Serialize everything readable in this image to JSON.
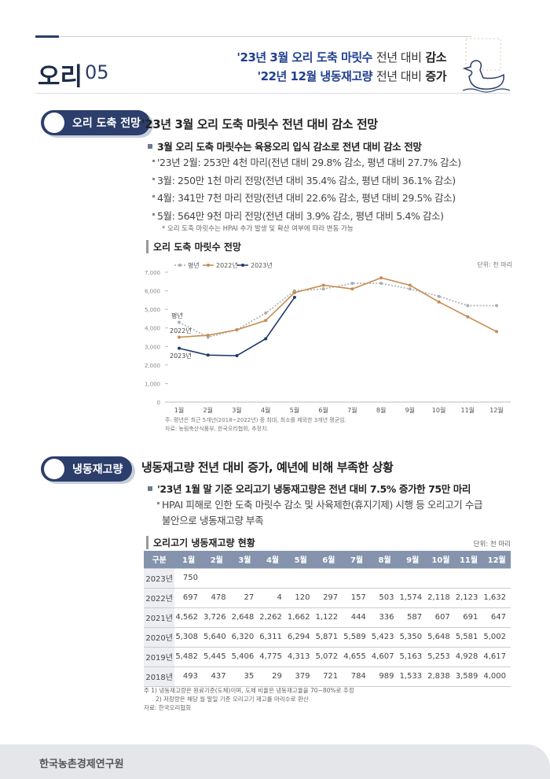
{
  "header": {
    "title": "오리",
    "number": "05",
    "headline_1": {
      "a": "'23년 3월 오리 도축 마릿수",
      "b": "전년 대비",
      "c": "감소"
    },
    "headline_2": {
      "a": "'22년 12월 냉동재고량",
      "b": "전년 대비",
      "c": "증가"
    }
  },
  "section_1": {
    "tag": "오리 도축 전망",
    "heading": "'23년 3월 오리 도축 마릿수 전년 대비 감소 전망",
    "bullet": "3월 오리 도축 마릿수는 육용오리 입식 감소로 전년 대비 감소 전망",
    "items": [
      "'23년 2월: 253만 4천 마리(전년 대비 29.8% 감소, 평년 대비 27.7% 감소)",
      "3월: 250만 1천 마리 전망(전년 대비 35.4% 감소, 평년 대비 36.1% 감소)",
      "4월: 341만 7천 마리 전망(전년 대비 22.6% 감소, 평년 대비 29.5% 감소)",
      "5월: 564만 9천 마리 전망(전년 대비 3.9% 감소, 평년 대비 5.4% 감소)"
    ],
    "note": "* 오리 도축 마릿수는 HPAI 추가 발생 및 확산 여부에 따라 변동 가능"
  },
  "chart_data": {
    "type": "line",
    "title": "오리 도축 마릿수 전망",
    "unit": "단위: 천 마리",
    "categories": [
      "1월",
      "2월",
      "3월",
      "4월",
      "5월",
      "6월",
      "7월",
      "8월",
      "9월",
      "10월",
      "11월",
      "12월"
    ],
    "series": [
      {
        "name": "평년",
        "color": "#a9aeb6",
        "dash": true,
        "values": [
          4300,
          3500,
          3900,
          4800,
          6000,
          6100,
          6400,
          6400,
          6100,
          5700,
          5200,
          5200
        ]
      },
      {
        "name": "2022년",
        "color": "#c98b4f",
        "dash": false,
        "values": [
          3500,
          3600,
          3900,
          4400,
          5900,
          6300,
          6100,
          6700,
          6300,
          5400,
          4600,
          3800
        ]
      },
      {
        "name": "2023년",
        "color": "#1f3a6b",
        "dash": false,
        "values": [
          2900,
          2534,
          2501,
          3417,
          5649,
          null,
          null,
          null,
          null,
          null,
          null,
          null
        ]
      }
    ],
    "annotations": [
      "평년",
      "2022년",
      "2023년"
    ],
    "ylim": [
      0,
      7000
    ],
    "yticks": [
      0,
      {
        "value": 1000,
        "label": "1,000"
      },
      {
        "value": 2000,
        "label": "2,000"
      },
      {
        "value": 3000,
        "label": "3,000"
      },
      {
        "value": 4000,
        "label": "4,000"
      },
      {
        "value": 5000,
        "label": "5,000"
      },
      {
        "value": 6000,
        "label": "6,000"
      },
      {
        "value": 7000,
        "label": "7,000"
      }
    ],
    "notes": [
      "주: 평년은 최근 5개년(2018~2022년) 중 최대, 최소를 제외한 3개년 평균임.",
      "자료: 농림축산식품부, 한국오리협회, 추정치."
    ]
  },
  "section_2": {
    "tag": "냉동재고량",
    "heading": "냉동재고량 전년 대비 증가, 예년에 비해 부족한 상황",
    "bullet": "'23년 1월 말 기준 오리고기 냉동재고량은 전년 대비 7.5% 증가한 75만 마리",
    "items": [
      "HPAI 피해로 인한 도축 마릿수 감소 및 사육제한(휴지기제) 시행 등 오리고기 수급",
      "불안으로 냉동재고량 부족"
    ]
  },
  "table": {
    "title": "오리고기 냉동재고량 현황",
    "unit": "단위: 천 마리",
    "header": [
      "구분",
      "1월",
      "2월",
      "3월",
      "4월",
      "5월",
      "6월",
      "7월",
      "8월",
      "9월",
      "10월",
      "11월",
      "12월"
    ],
    "rows": [
      [
        "2023년",
        "750"
      ],
      [
        "2022년",
        "697",
        "478",
        "27",
        "4",
        "120",
        "297",
        "157",
        "503",
        "1,574",
        "2,118",
        "2,123",
        "1,632"
      ],
      [
        "2021년",
        "4,562",
        "3,726",
        "2,648",
        "2,262",
        "1,662",
        "1,122",
        "444",
        "336",
        "587",
        "607",
        "691",
        "647"
      ],
      [
        "2020년",
        "5,308",
        "5,640",
        "6,320",
        "6,311",
        "6,294",
        "5,871",
        "5,589",
        "5,423",
        "5,350",
        "5,648",
        "5,581",
        "5,002"
      ],
      [
        "2019년",
        "5,482",
        "5,445",
        "5,406",
        "4,775",
        "4,313",
        "5,072",
        "4,655",
        "4,607",
        "5,163",
        "5,253",
        "4,928",
        "4,617"
      ],
      [
        "2018년",
        "493",
        "437",
        "35",
        "29",
        "379",
        "721",
        "784",
        "989",
        "1,533",
        "2,838",
        "3,589",
        "4,000"
      ]
    ],
    "notes": [
      "주 1) 냉동재고량은 원료기준(도체)이며, 도체 비율은 냉동재고율을 70~80%로 추정",
      "2) 저장량은 해당 월 말일 기준 오리고기 재고를 마리수로 환산",
      "자료: 한국오리협회"
    ]
  },
  "footer": "한국농촌경제연구원"
}
